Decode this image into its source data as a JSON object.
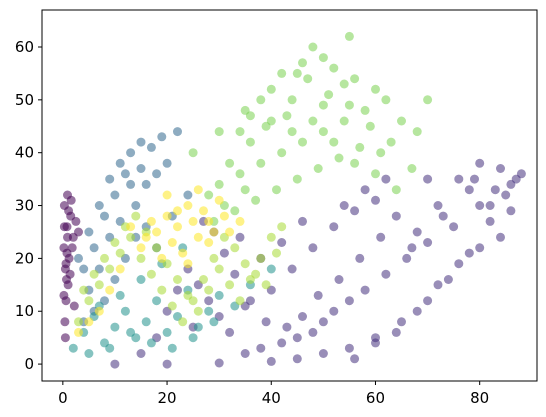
{
  "chart_data": {
    "type": "scatter",
    "title": "",
    "xlabel": "",
    "ylabel": "",
    "xlim": [
      -4,
      91
    ],
    "ylim": [
      -3.2,
      67
    ],
    "x_ticks": [
      0,
      20,
      40,
      60,
      80
    ],
    "y_ticks": [
      0,
      10,
      20,
      30,
      40,
      50,
      60
    ],
    "x_tick_labels": [
      "0",
      "20",
      "40",
      "60",
      "80"
    ],
    "y_tick_labels": [
      "0",
      "10",
      "20",
      "30",
      "40",
      "50",
      "60"
    ],
    "grid": false,
    "legend": "none",
    "marker_alpha": 0.55,
    "colormap": "viridis",
    "series": [
      {
        "color": "#440154",
        "points": [
          [
            0.2,
            22
          ],
          [
            0.5,
            18
          ],
          [
            0.8,
            26
          ],
          [
            1.0,
            15
          ],
          [
            0.3,
            30
          ],
          [
            1.5,
            28
          ],
          [
            0.6,
            12
          ],
          [
            2.0,
            24
          ],
          [
            0.9,
            32
          ],
          [
            0.4,
            8
          ],
          [
            1.2,
            20
          ],
          [
            0.7,
            16
          ],
          [
            1.8,
            22
          ],
          [
            0.3,
            26
          ],
          [
            1.1,
            29
          ],
          [
            0.5,
            5
          ],
          [
            2.5,
            27
          ],
          [
            0.8,
            21
          ],
          [
            1.4,
            17
          ],
          [
            0.2,
            13
          ],
          [
            3.0,
            25
          ],
          [
            1.6,
            31
          ],
          [
            0.6,
            19
          ],
          [
            2.2,
            11
          ],
          [
            0.9,
            24
          ]
        ]
      },
      {
        "color": "#46327e",
        "points": [
          [
            10,
            0
          ],
          [
            20,
            0
          ],
          [
            30,
            0.2
          ],
          [
            40,
            0.5
          ],
          [
            45,
            1
          ],
          [
            50,
            2
          ],
          [
            55,
            3
          ],
          [
            60,
            5
          ],
          [
            65,
            8
          ],
          [
            70,
            12
          ],
          [
            74,
            16
          ],
          [
            78,
            21
          ],
          [
            82,
            27
          ],
          [
            85,
            32
          ],
          [
            88,
            36
          ],
          [
            86,
            34
          ],
          [
            80,
            30
          ],
          [
            75,
            26
          ],
          [
            70,
            23
          ],
          [
            66,
            20
          ],
          [
            62,
            17
          ],
          [
            58,
            14
          ],
          [
            55,
            12
          ],
          [
            52,
            10
          ],
          [
            50,
            8
          ],
          [
            48,
            6
          ],
          [
            45,
            5
          ],
          [
            42,
            4
          ],
          [
            38,
            3
          ],
          [
            35,
            2
          ],
          [
            32,
            6
          ],
          [
            30,
            9
          ],
          [
            28,
            12
          ],
          [
            26,
            15
          ],
          [
            24,
            18
          ],
          [
            22,
            14
          ],
          [
            20,
            10
          ],
          [
            25,
            7
          ],
          [
            35,
            11
          ],
          [
            40,
            14
          ],
          [
            44,
            18
          ],
          [
            48,
            22
          ],
          [
            52,
            26
          ],
          [
            56,
            29
          ],
          [
            60,
            31
          ],
          [
            64,
            28
          ],
          [
            68,
            25
          ],
          [
            72,
            30
          ],
          [
            76,
            35
          ],
          [
            80,
            38
          ],
          [
            84,
            37
          ],
          [
            87,
            35
          ],
          [
            83,
            33
          ],
          [
            79,
            35
          ],
          [
            73,
            28
          ],
          [
            67,
            22
          ],
          [
            61,
            24
          ],
          [
            57,
            20
          ],
          [
            53,
            16
          ],
          [
            49,
            13
          ],
          [
            46,
            9
          ],
          [
            43,
            7
          ],
          [
            39,
            8
          ],
          [
            36,
            12
          ],
          [
            33,
            17
          ],
          [
            31,
            21
          ],
          [
            29,
            25
          ],
          [
            27,
            27
          ],
          [
            34,
            24
          ],
          [
            38,
            20
          ],
          [
            42,
            23
          ],
          [
            46,
            27
          ],
          [
            54,
            30
          ],
          [
            58,
            33
          ],
          [
            62,
            35
          ],
          [
            70,
            35
          ],
          [
            78,
            33
          ],
          [
            82,
            30
          ],
          [
            86,
            29
          ],
          [
            84,
            24
          ],
          [
            80,
            22
          ],
          [
            76,
            19
          ],
          [
            72,
            15
          ],
          [
            68,
            10
          ],
          [
            64,
            6
          ],
          [
            60,
            4
          ],
          [
            56,
            1
          ],
          [
            15,
            2
          ],
          [
            18,
            5
          ]
        ]
      },
      {
        "color": "#31688e",
        "points": [
          [
            3,
            20
          ],
          [
            5,
            25
          ],
          [
            7,
            30
          ],
          [
            9,
            35
          ],
          [
            11,
            38
          ],
          [
            13,
            40
          ],
          [
            15,
            42
          ],
          [
            12,
            36
          ],
          [
            10,
            32
          ],
          [
            8,
            28
          ],
          [
            6,
            22
          ],
          [
            4,
            18
          ],
          [
            14,
            30
          ],
          [
            16,
            26
          ],
          [
            18,
            22
          ],
          [
            11,
            27
          ],
          [
            9,
            24
          ],
          [
            7,
            18
          ],
          [
            13,
            34
          ],
          [
            15,
            37
          ],
          [
            17,
            41
          ],
          [
            19,
            43
          ],
          [
            20,
            38
          ],
          [
            22,
            44
          ],
          [
            24,
            32
          ],
          [
            21,
            28
          ],
          [
            5,
            14
          ],
          [
            8,
            12
          ],
          [
            10,
            16
          ],
          [
            12,
            20
          ],
          [
            14,
            24
          ],
          [
            16,
            34
          ],
          [
            18,
            36
          ],
          [
            6,
            10
          ],
          [
            4,
            8
          ]
        ]
      },
      {
        "color": "#21918c",
        "points": [
          [
            2,
            3
          ],
          [
            4,
            6
          ],
          [
            6,
            9
          ],
          [
            8,
            4
          ],
          [
            10,
            7
          ],
          [
            12,
            10
          ],
          [
            14,
            5
          ],
          [
            16,
            8
          ],
          [
            18,
            12
          ],
          [
            20,
            6
          ],
          [
            22,
            9
          ],
          [
            24,
            14
          ],
          [
            26,
            7
          ],
          [
            28,
            10
          ],
          [
            30,
            13
          ],
          [
            5,
            2
          ],
          [
            9,
            3
          ],
          [
            13,
            6
          ],
          [
            17,
            4
          ],
          [
            21,
            3
          ],
          [
            25,
            5
          ],
          [
            29,
            8
          ],
          [
            33,
            11
          ],
          [
            36,
            15
          ],
          [
            40,
            18
          ],
          [
            7,
            11
          ],
          [
            11,
            13
          ],
          [
            15,
            16
          ],
          [
            19,
            19
          ],
          [
            23,
            22
          ]
        ]
      },
      {
        "color": "#7ad151",
        "points": [
          [
            25,
            40
          ],
          [
            30,
            44
          ],
          [
            35,
            48
          ],
          [
            40,
            52
          ],
          [
            45,
            55
          ],
          [
            50,
            58
          ],
          [
            55,
            62
          ],
          [
            48,
            60
          ],
          [
            52,
            56
          ],
          [
            56,
            54
          ],
          [
            60,
            52
          ],
          [
            58,
            48
          ],
          [
            54,
            46
          ],
          [
            50,
            44
          ],
          [
            46,
            42
          ],
          [
            42,
            40
          ],
          [
            38,
            38
          ],
          [
            34,
            36
          ],
          [
            30,
            34
          ],
          [
            28,
            32
          ],
          [
            32,
            38
          ],
          [
            36,
            42
          ],
          [
            40,
            46
          ],
          [
            44,
            50
          ],
          [
            47,
            54
          ],
          [
            51,
            51
          ],
          [
            55,
            49
          ],
          [
            59,
            45
          ],
          [
            62,
            50
          ],
          [
            65,
            46
          ],
          [
            57,
            41
          ],
          [
            53,
            39
          ],
          [
            49,
            37
          ],
          [
            45,
            35
          ],
          [
            41,
            33
          ],
          [
            37,
            31
          ],
          [
            33,
            29
          ],
          [
            39,
            45
          ],
          [
            43,
            47
          ],
          [
            48,
            46
          ],
          [
            52,
            42
          ],
          [
            56,
            38
          ],
          [
            60,
            36
          ],
          [
            64,
            33
          ],
          [
            67,
            37
          ],
          [
            70,
            50
          ],
          [
            68,
            44
          ],
          [
            63,
            42
          ],
          [
            61,
            40
          ],
          [
            35,
            33
          ],
          [
            31,
            30
          ],
          [
            29,
            27
          ],
          [
            44,
            44
          ],
          [
            50,
            49
          ],
          [
            54,
            53
          ],
          [
            46,
            57
          ],
          [
            42,
            55
          ],
          [
            38,
            50
          ],
          [
            36,
            47
          ],
          [
            34,
            44
          ]
        ]
      },
      {
        "color": "#a8db34",
        "points": [
          [
            3,
            8
          ],
          [
            5,
            12
          ],
          [
            7,
            15
          ],
          [
            9,
            18
          ],
          [
            11,
            21
          ],
          [
            13,
            24
          ],
          [
            15,
            20
          ],
          [
            17,
            17
          ],
          [
            19,
            14
          ],
          [
            21,
            11
          ],
          [
            23,
            8
          ],
          [
            25,
            12
          ],
          [
            27,
            16
          ],
          [
            29,
            20
          ],
          [
            31,
            24
          ],
          [
            33,
            22
          ],
          [
            35,
            19
          ],
          [
            37,
            17
          ],
          [
            39,
            15
          ],
          [
            41,
            21
          ],
          [
            4,
            14
          ],
          [
            6,
            17
          ],
          [
            8,
            20
          ],
          [
            10,
            23
          ],
          [
            12,
            26
          ],
          [
            14,
            28
          ],
          [
            16,
            25
          ],
          [
            18,
            22
          ],
          [
            20,
            19
          ],
          [
            22,
            16
          ],
          [
            24,
            13
          ],
          [
            26,
            10
          ],
          [
            28,
            14
          ],
          [
            30,
            18
          ],
          [
            32,
            15
          ],
          [
            34,
            12
          ],
          [
            36,
            16
          ],
          [
            38,
            20
          ],
          [
            40,
            24
          ],
          [
            42,
            26
          ]
        ]
      },
      {
        "color": "#fde725",
        "points": [
          [
            15,
            22
          ],
          [
            18,
            25
          ],
          [
            20,
            28
          ],
          [
            22,
            26
          ],
          [
            24,
            30
          ],
          [
            26,
            24
          ],
          [
            28,
            27
          ],
          [
            30,
            31
          ],
          [
            19,
            20
          ],
          [
            21,
            23
          ],
          [
            23,
            21
          ],
          [
            25,
            27
          ],
          [
            27,
            29
          ],
          [
            29,
            25
          ],
          [
            31,
            28
          ],
          [
            17,
            27
          ],
          [
            16,
            24
          ],
          [
            13,
            26
          ],
          [
            32,
            25
          ],
          [
            34,
            27
          ],
          [
            20,
            32
          ],
          [
            22,
            29
          ],
          [
            26,
            33
          ],
          [
            28,
            23
          ],
          [
            24,
            19
          ],
          [
            11,
            18
          ],
          [
            9,
            14
          ],
          [
            7,
            10
          ],
          [
            5,
            8
          ],
          [
            3,
            6
          ]
        ]
      }
    ]
  }
}
